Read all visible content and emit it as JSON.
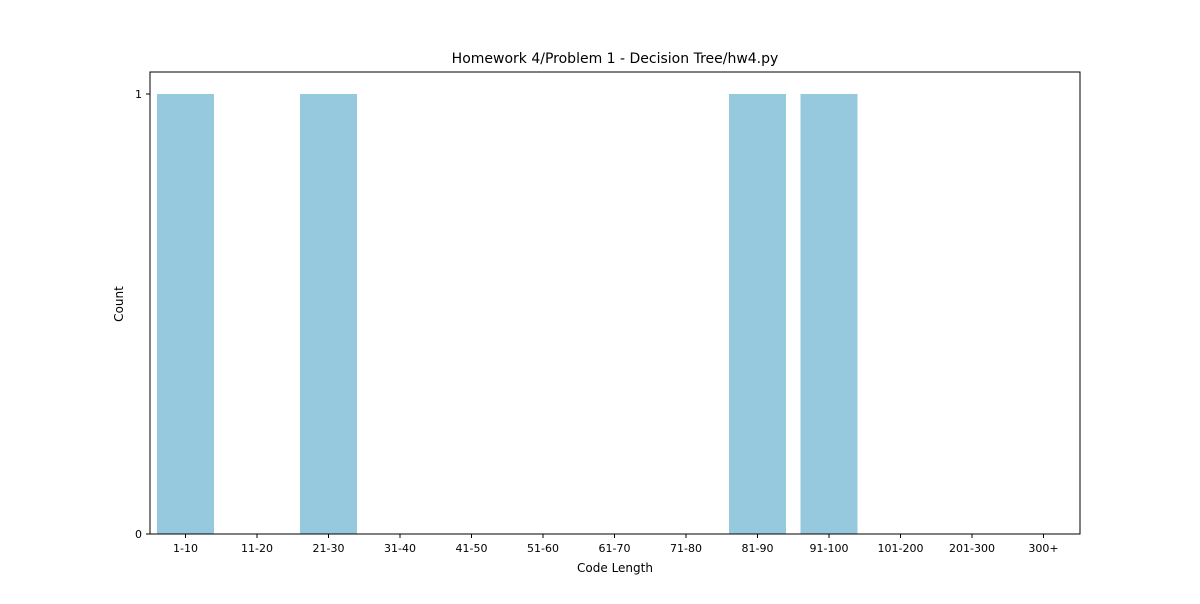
{
  "chart_data": {
    "type": "bar",
    "title": "Homework 4/Problem 1 - Decision Tree/hw4.py",
    "xlabel": "Code Length",
    "ylabel": "Count",
    "categories": [
      "1-10",
      "11-20",
      "21-30",
      "31-40",
      "41-50",
      "51-60",
      "61-70",
      "71-80",
      "81-90",
      "91-100",
      "101-200",
      "201-300",
      "300+"
    ],
    "values": [
      1,
      0,
      1,
      0,
      0,
      0,
      0,
      0,
      1,
      1,
      0,
      0,
      0
    ],
    "ylim": [
      0,
      1
    ],
    "yticks": [
      "0",
      "1"
    ],
    "grid": false,
    "colors": {
      "bar": "#96c9de",
      "axis": "#000000",
      "background": "#ffffff"
    }
  }
}
